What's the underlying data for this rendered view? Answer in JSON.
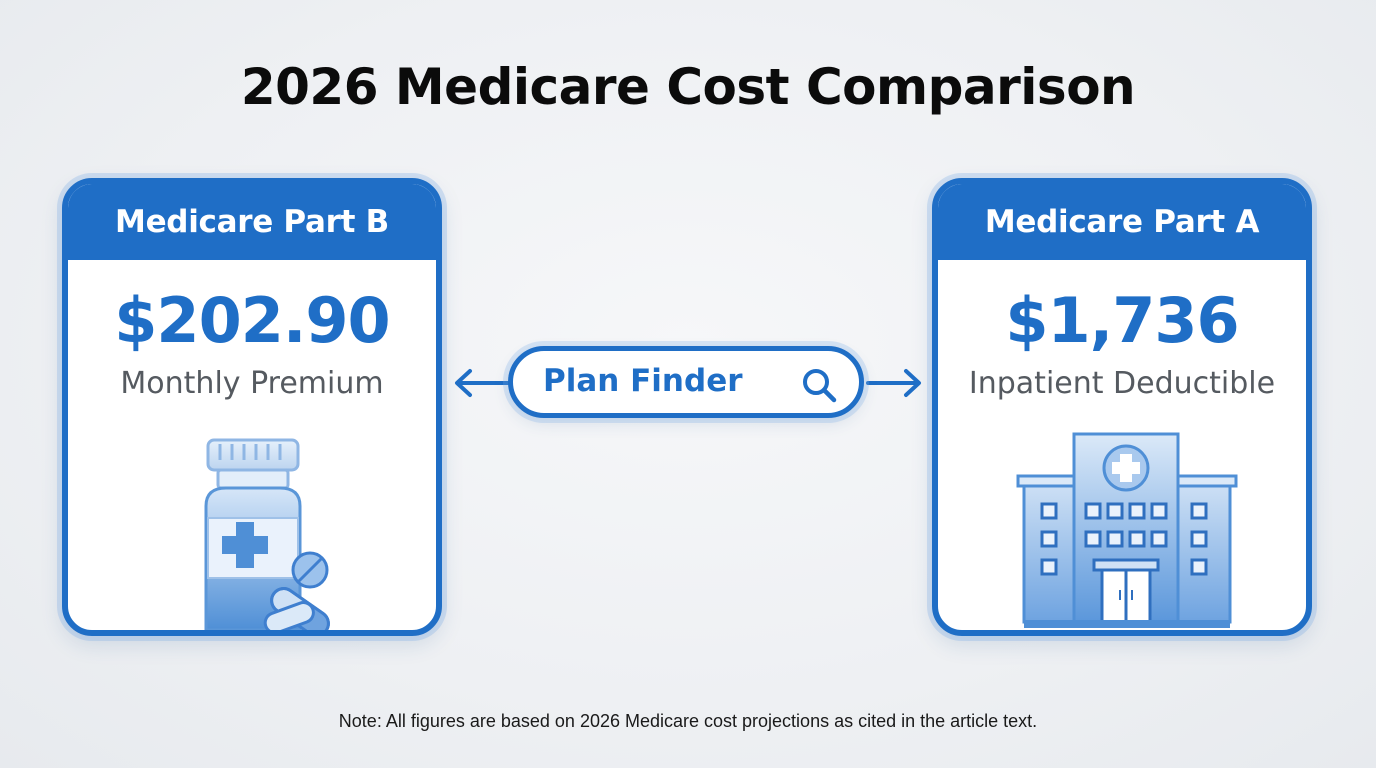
{
  "title": "2026 Medicare Cost Comparison",
  "cards": [
    {
      "header": "Medicare Part B",
      "value": "$202.90",
      "subtitle": "Monthly Premium",
      "icon": "pill-bottle-icon"
    },
    {
      "header": "Medicare Part A",
      "value": "$1,736",
      "subtitle": "Inpatient Deductible",
      "icon": "hospital-icon"
    }
  ],
  "plan_finder": {
    "label": "Plan Finder",
    "icon": "search-icon"
  },
  "note": "Note: All figures are based on 2026 Medicare cost projections as cited in the article text.",
  "colors": {
    "accent": "#1f6ec6",
    "title": "#0b0b0b",
    "subtitle": "#555a60",
    "background": "#eef0f3"
  }
}
